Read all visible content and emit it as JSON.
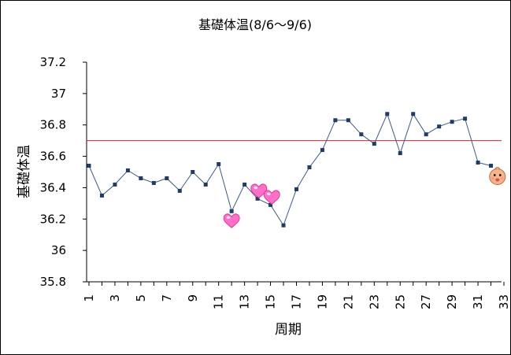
{
  "chart_data": {
    "type": "line",
    "title": "基礎体温(8/6〜9/6)",
    "xlabel": "周期",
    "ylabel": "基礎体温",
    "ylim": [
      35.8,
      37.2
    ],
    "yticks": [
      "35.8",
      "36",
      "36.2",
      "36.4",
      "36.6",
      "36.8",
      "37",
      "37.2"
    ],
    "xlim": [
      1,
      33
    ],
    "xticks": [
      "1",
      "3",
      "5",
      "7",
      "9",
      "11",
      "13",
      "15",
      "17",
      "19",
      "21",
      "23",
      "25",
      "27",
      "29",
      "31",
      "33"
    ],
    "reference_line": {
      "y": 36.7,
      "color": "#e0202a"
    },
    "series": [
      {
        "color": "#3a5b8c",
        "marker_color": "#1f3b66",
        "x": [
          1,
          2,
          3,
          4,
          5,
          6,
          7,
          8,
          9,
          10,
          11,
          12,
          13,
          14,
          15,
          16,
          17,
          18,
          19,
          20,
          21,
          22,
          23,
          24,
          25,
          26,
          27,
          28,
          29,
          30,
          31,
          32
        ],
        "y": [
          36.54,
          36.35,
          36.42,
          36.51,
          36.46,
          36.43,
          36.46,
          36.38,
          36.5,
          36.42,
          36.55,
          36.25,
          36.42,
          36.33,
          36.29,
          36.16,
          36.39,
          36.53,
          36.64,
          36.83,
          36.83,
          36.74,
          36.68,
          36.87,
          36.62,
          36.87,
          36.74,
          36.79,
          36.82,
          36.84,
          36.56,
          36.54
        ]
      }
    ],
    "annotations": [
      {
        "icon": "heart-icon",
        "x": 12,
        "y": 36.19
      },
      {
        "icon": "heart-icon",
        "x": 14.1,
        "y": 36.38
      },
      {
        "icon": "heart-icon",
        "x": 15.1,
        "y": 36.34
      },
      {
        "icon": "baby-face-icon",
        "x": 32.5,
        "y": 36.47
      }
    ],
    "grid": false,
    "legend": "none"
  },
  "colors": {
    "heart": "#ff6ec7",
    "baby_face": "#f7b58a"
  }
}
